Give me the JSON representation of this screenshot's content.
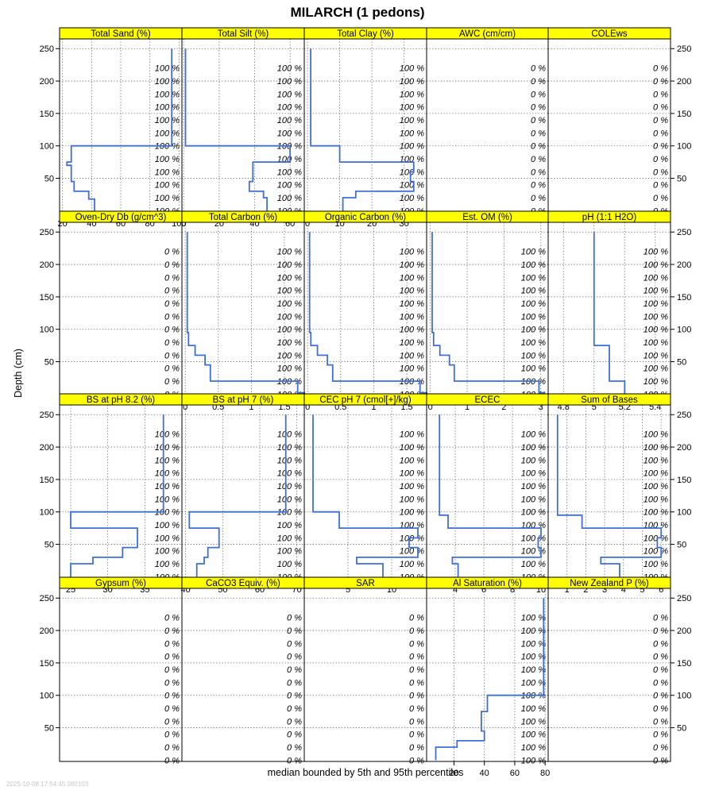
{
  "title": "MILARCH (1 pedons)",
  "ylabel": "Depth (cm)",
  "xlabel": "median bounded by 5th and 95th percentiles",
  "timestamp": "2025-10-08 17:54:45.080103",
  "colors": {
    "line": "#3f6fd6",
    "strip": "#ffff00",
    "grid": "#555555"
  },
  "chart_data": {
    "type": "line",
    "ylim": [
      265,
      -2
    ],
    "yticks": [
      50,
      100,
      150,
      200,
      250
    ],
    "grid": true,
    "pct_depths": [
      0,
      20,
      40,
      60,
      80,
      100,
      120,
      140,
      160,
      180,
      200,
      220
    ],
    "panels": [
      {
        "name": "Total Sand (%)",
        "xlim": [
          18,
          102
        ],
        "xticks": [
          20,
          40,
          60,
          80,
          100
        ],
        "pct": [
          100,
          100,
          100,
          100,
          100,
          100,
          100,
          100,
          100,
          100,
          100,
          100
        ],
        "profile": [
          [
            42,
            0
          ],
          [
            42,
            18
          ],
          [
            38,
            18
          ],
          [
            38,
            30
          ],
          [
            28,
            30
          ],
          [
            28,
            45
          ],
          [
            26,
            45
          ],
          [
            26,
            70
          ],
          [
            23,
            70
          ],
          [
            23,
            75
          ],
          [
            26,
            75
          ],
          [
            26,
            100
          ],
          [
            95,
            100
          ],
          [
            95,
            250
          ]
        ]
      },
      {
        "name": "Total Silt (%)",
        "xlim": [
          -1,
          68
        ],
        "xticks": [
          0,
          20,
          40,
          60
        ],
        "pct": [
          100,
          100,
          100,
          100,
          100,
          100,
          100,
          100,
          100,
          100,
          100,
          100
        ],
        "profile": [
          [
            47,
            0
          ],
          [
            47,
            20
          ],
          [
            45,
            20
          ],
          [
            45,
            30
          ],
          [
            37,
            30
          ],
          [
            37,
            45
          ],
          [
            39,
            45
          ],
          [
            39,
            75
          ],
          [
            60,
            75
          ],
          [
            60,
            100
          ],
          [
            1,
            100
          ],
          [
            1,
            250
          ]
        ]
      },
      {
        "name": "Total Clay (%)",
        "xlim": [
          -1,
          37
        ],
        "xticks": [
          0,
          10,
          20,
          30
        ],
        "pct": [
          100,
          100,
          100,
          100,
          100,
          100,
          100,
          100,
          100,
          100,
          100,
          100
        ],
        "profile": [
          [
            11,
            0
          ],
          [
            11,
            20
          ],
          [
            15,
            20
          ],
          [
            15,
            30
          ],
          [
            33,
            30
          ],
          [
            33,
            45
          ],
          [
            32,
            45
          ],
          [
            32,
            60
          ],
          [
            33,
            60
          ],
          [
            33,
            75
          ],
          [
            10,
            75
          ],
          [
            10,
            100
          ],
          [
            1,
            100
          ],
          [
            1,
            250
          ]
        ]
      },
      {
        "name": "AWC (cm/cm)",
        "xlim": [
          0,
          1
        ],
        "xticks": [],
        "pct": [
          0,
          0,
          0,
          0,
          0,
          0,
          0,
          0,
          0,
          0,
          0,
          0
        ],
        "profile": []
      },
      {
        "name": "COLEws",
        "xlim": [
          0,
          1
        ],
        "xticks": [],
        "pct": [
          0,
          0,
          0,
          0,
          0,
          0,
          0,
          0,
          0,
          0,
          0,
          0
        ],
        "profile": []
      },
      {
        "name": "Oven-Dry Db (g/cm^3)",
        "xlim": [
          0,
          1
        ],
        "xticks": [],
        "pct": [
          0,
          0,
          0,
          0,
          0,
          0,
          0,
          0,
          0,
          0,
          0,
          0
        ],
        "profile": []
      },
      {
        "name": "Total Carbon (%)",
        "xlim": [
          -0.05,
          1.8
        ],
        "xticks": [
          0,
          0.5,
          1,
          1.5
        ],
        "pct": [
          100,
          100,
          100,
          100,
          100,
          100,
          100,
          100,
          100,
          100,
          100,
          100
        ],
        "profile": [
          [
            1.8,
            0
          ],
          [
            1.8,
            2
          ],
          [
            1.7,
            2
          ],
          [
            1.7,
            20
          ],
          [
            0.38,
            20
          ],
          [
            0.38,
            45
          ],
          [
            0.3,
            45
          ],
          [
            0.3,
            60
          ],
          [
            0.15,
            60
          ],
          [
            0.15,
            75
          ],
          [
            0.05,
            75
          ],
          [
            0.05,
            95
          ],
          [
            0.03,
            95
          ],
          [
            0.03,
            250
          ]
        ]
      },
      {
        "name": "Organic Carbon (%)",
        "xlim": [
          -0.05,
          1.8
        ],
        "xticks": [
          0,
          0.5,
          1,
          1.5
        ],
        "pct": [
          100,
          100,
          100,
          100,
          100,
          100,
          100,
          100,
          100,
          100,
          100,
          100
        ],
        "profile": [
          [
            1.8,
            0
          ],
          [
            1.8,
            2
          ],
          [
            1.7,
            2
          ],
          [
            1.7,
            20
          ],
          [
            0.38,
            20
          ],
          [
            0.38,
            45
          ],
          [
            0.3,
            45
          ],
          [
            0.3,
            60
          ],
          [
            0.15,
            60
          ],
          [
            0.15,
            75
          ],
          [
            0.05,
            75
          ],
          [
            0.05,
            95
          ],
          [
            0.03,
            95
          ],
          [
            0.03,
            250
          ]
        ]
      },
      {
        "name": "Est. OM (%)",
        "xlim": [
          -0.1,
          3.2
        ],
        "xticks": [
          0,
          1,
          2,
          3
        ],
        "pct": [
          100,
          100,
          100,
          100,
          100,
          100,
          100,
          100,
          100,
          100,
          100,
          100
        ],
        "profile": [
          [
            3.1,
            0
          ],
          [
            3.1,
            2
          ],
          [
            2.95,
            2
          ],
          [
            2.95,
            20
          ],
          [
            0.65,
            20
          ],
          [
            0.65,
            45
          ],
          [
            0.52,
            45
          ],
          [
            0.52,
            60
          ],
          [
            0.26,
            60
          ],
          [
            0.26,
            75
          ],
          [
            0.09,
            75
          ],
          [
            0.09,
            95
          ],
          [
            0.05,
            95
          ],
          [
            0.05,
            250
          ]
        ]
      },
      {
        "name": "pH (1:1 H2O)",
        "xlim": [
          4.7,
          5.5
        ],
        "xticks": [
          4.8,
          5.0,
          5.2,
          5.4
        ],
        "pct": [
          100,
          100,
          100,
          100,
          100,
          100,
          100,
          100,
          100,
          100,
          100,
          100
        ],
        "profile": [
          [
            5.2,
            0
          ],
          [
            5.2,
            20
          ],
          [
            5.1,
            20
          ],
          [
            5.1,
            75
          ],
          [
            5.0,
            75
          ],
          [
            5.0,
            250
          ]
        ]
      },
      {
        "name": "BS at pH 8.2 (%)",
        "xlim": [
          23.5,
          40
        ],
        "xticks": [
          25,
          30,
          35
        ],
        "pct": [
          100,
          100,
          100,
          100,
          100,
          100,
          100,
          100,
          100,
          100,
          100,
          100
        ],
        "profile": [
          [
            25,
            0
          ],
          [
            25,
            20
          ],
          [
            28,
            20
          ],
          [
            28,
            30
          ],
          [
            32,
            30
          ],
          [
            32,
            45
          ],
          [
            34,
            45
          ],
          [
            34,
            75
          ],
          [
            25,
            75
          ],
          [
            25,
            100
          ],
          [
            37.5,
            100
          ],
          [
            37.5,
            250
          ]
        ]
      },
      {
        "name": "BS at pH 7 (%)",
        "xlim": [
          39,
          72
        ],
        "xticks": [
          40,
          50,
          60,
          70
        ],
        "pct": [
          100,
          100,
          100,
          100,
          100,
          100,
          100,
          100,
          100,
          100,
          100,
          100
        ],
        "profile": [
          [
            43,
            0
          ],
          [
            43,
            20
          ],
          [
            45,
            20
          ],
          [
            45,
            30
          ],
          [
            46,
            30
          ],
          [
            46,
            45
          ],
          [
            49,
            45
          ],
          [
            49,
            75
          ],
          [
            41,
            75
          ],
          [
            41,
            100
          ],
          [
            67,
            100
          ],
          [
            67,
            250
          ]
        ]
      },
      {
        "name": "CEC pH 7 (cmol[+]/kg)",
        "xlim": [
          0,
          14
        ],
        "xticks": [
          5,
          10
        ],
        "pct": [
          100,
          100,
          100,
          100,
          100,
          100,
          100,
          100,
          100,
          100,
          100,
          100
        ],
        "profile": [
          [
            9,
            0
          ],
          [
            9,
            20
          ],
          [
            6,
            20
          ],
          [
            6,
            30
          ],
          [
            13,
            30
          ],
          [
            13,
            45
          ],
          [
            12,
            45
          ],
          [
            12,
            60
          ],
          [
            13,
            60
          ],
          [
            13,
            75
          ],
          [
            4,
            75
          ],
          [
            4,
            100
          ],
          [
            1,
            100
          ],
          [
            1,
            250
          ]
        ]
      },
      {
        "name": "ECEC",
        "xlim": [
          2,
          10.5
        ],
        "xticks": [
          4,
          6,
          8,
          10
        ],
        "pct": [
          100,
          100,
          100,
          100,
          100,
          100,
          100,
          100,
          100,
          100,
          100,
          100
        ],
        "profile": [
          [
            4.2,
            0
          ],
          [
            4.2,
            20
          ],
          [
            3.8,
            20
          ],
          [
            3.8,
            30
          ],
          [
            10,
            30
          ],
          [
            10,
            45
          ],
          [
            9.8,
            45
          ],
          [
            9.8,
            60
          ],
          [
            10,
            60
          ],
          [
            10,
            75
          ],
          [
            3.5,
            75
          ],
          [
            3.5,
            95
          ],
          [
            2.9,
            95
          ],
          [
            2.9,
            250
          ]
        ]
      },
      {
        "name": "Sum of Bases",
        "xlim": [
          0,
          6.5
        ],
        "xticks": [
          1,
          2,
          3,
          4,
          5,
          6
        ],
        "pct": [
          100,
          100,
          100,
          100,
          100,
          100,
          100,
          100,
          100,
          100,
          100,
          100
        ],
        "profile": [
          [
            3.8,
            0
          ],
          [
            3.8,
            20
          ],
          [
            2.8,
            20
          ],
          [
            2.8,
            30
          ],
          [
            6,
            30
          ],
          [
            6,
            45
          ],
          [
            5.8,
            45
          ],
          [
            5.8,
            60
          ],
          [
            6,
            60
          ],
          [
            6,
            75
          ],
          [
            1.8,
            75
          ],
          [
            1.8,
            95
          ],
          [
            0.5,
            95
          ],
          [
            0.5,
            250
          ]
        ]
      },
      {
        "name": "Gypsum (%)",
        "xlim": [
          0,
          1
        ],
        "xticks": [],
        "pct": [
          0,
          0,
          0,
          0,
          0,
          0,
          0,
          0,
          0,
          0,
          0,
          0
        ],
        "profile": []
      },
      {
        "name": "CaCO3 Equiv. (%)",
        "xlim": [
          0,
          1
        ],
        "xticks": [],
        "pct": [
          0,
          0,
          0,
          0,
          0,
          0,
          0,
          0,
          0,
          0,
          0,
          0
        ],
        "profile": []
      },
      {
        "name": "SAR",
        "xlim": [
          0,
          1
        ],
        "xticks": [],
        "pct": [
          0,
          0,
          0,
          0,
          0,
          0,
          0,
          0,
          0,
          0,
          0,
          0
        ],
        "profile": []
      },
      {
        "name": "Al Saturation (%)",
        "xlim": [
          2,
          82
        ],
        "xticks": [
          20,
          40,
          60,
          80
        ],
        "pct": [
          100,
          100,
          100,
          100,
          100,
          100,
          100,
          100,
          100,
          100,
          100,
          100
        ],
        "profile": [
          [
            8,
            0
          ],
          [
            8,
            20
          ],
          [
            22,
            20
          ],
          [
            22,
            30
          ],
          [
            40,
            30
          ],
          [
            40,
            45
          ],
          [
            38,
            45
          ],
          [
            38,
            75
          ],
          [
            42,
            75
          ],
          [
            42,
            100
          ],
          [
            79,
            100
          ],
          [
            79,
            250
          ]
        ]
      },
      {
        "name": "New Zealand P (%)",
        "xlim": [
          0,
          1
        ],
        "xticks": [],
        "pct": [
          0,
          0,
          0,
          0,
          0,
          0,
          0,
          0,
          0,
          0,
          0,
          0
        ],
        "profile": []
      }
    ]
  }
}
